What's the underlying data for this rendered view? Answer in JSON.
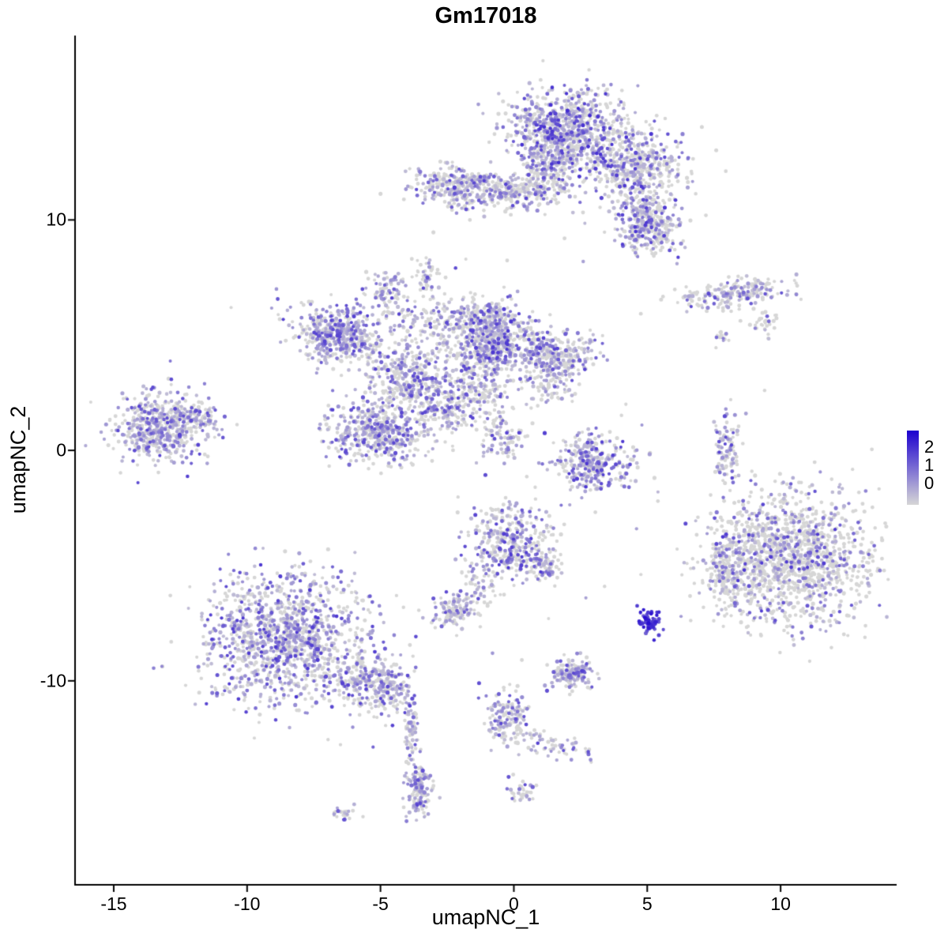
{
  "title": "Gm17018",
  "axes": {
    "x": {
      "label": "umapNC_1"
    },
    "y": {
      "label": "umapNC_2"
    }
  },
  "legend": {
    "labels": [
      "2",
      "1",
      "0"
    ]
  },
  "colors": {
    "axis": "#000000",
    "background": "#ffffff",
    "low": "#d6d6d6",
    "high": "#1c00cf"
  },
  "chart_data": {
    "type": "scatter",
    "title": "Gm17018",
    "xlabel": "umapNC_1",
    "ylabel": "umapNC_2",
    "xlim": [
      -16.45,
      14.35
    ],
    "ylim": [
      -18.85,
      18.0
    ],
    "xticks": [
      -15,
      -10,
      -5,
      0,
      5,
      10
    ],
    "yticks": [
      -10,
      0,
      10
    ],
    "grid": false,
    "legend_position": "right",
    "colorbar": {
      "ticks": [
        2,
        1,
        0
      ],
      "low_color": "#d6d6d6",
      "high_color": "#1c00cf",
      "value_min": 0,
      "value_max": 2
    },
    "point_radius_px": 2.3,
    "seed": 7,
    "value_default": {
      "vmin": 0.25,
      "vmax": 1.4
    },
    "clusters": [
      {
        "name": "top-main",
        "cx": 2.0,
        "cy": 13.8,
        "sx": 1.05,
        "sy": 0.95,
        "rot": 0,
        "n": 900,
        "frac": 0.5,
        "vmax": 1.6
      },
      {
        "name": "top-stem",
        "cx": 1.2,
        "cy": 11.9,
        "sx": 0.5,
        "sy": 0.65,
        "rot": 0,
        "n": 200,
        "frac": 0.45
      },
      {
        "name": "top-right-lobe",
        "cx": 4.6,
        "cy": 12.2,
        "sx": 0.85,
        "sy": 0.9,
        "rot": 0,
        "n": 450,
        "frac": 0.45,
        "vmax": 1.5
      },
      {
        "name": "top-right-neck",
        "cx": 4.9,
        "cy": 10.7,
        "sx": 0.35,
        "sy": 0.4,
        "rot": 0,
        "n": 80,
        "frac": 0.45
      },
      {
        "name": "top-right-lower",
        "cx": 5.1,
        "cy": 9.5,
        "sx": 0.6,
        "sy": 0.5,
        "rot": -10,
        "n": 260,
        "frac": 0.5,
        "vmax": 1.5
      },
      {
        "name": "top-left-arm",
        "cx": -1.9,
        "cy": 11.4,
        "sx": 0.95,
        "sy": 0.45,
        "rot": -8,
        "n": 350,
        "frac": 0.45
      },
      {
        "name": "top-bridge",
        "cx": 0.1,
        "cy": 11.2,
        "sx": 0.5,
        "sy": 0.3,
        "rot": 0,
        "n": 100,
        "frac": 0.4
      },
      {
        "name": "small-upper-mid",
        "cx": -3.2,
        "cy": 7.6,
        "sx": 0.3,
        "sy": 0.4,
        "rot": 0,
        "n": 45,
        "frac": 0.5
      },
      {
        "name": "mid-main",
        "cx": -0.9,
        "cy": 5.0,
        "sx": 0.85,
        "sy": 0.85,
        "rot": 0,
        "n": 700,
        "frac": 0.5,
        "vmax": 1.5
      },
      {
        "name": "mid-left-bridge",
        "cx": -3.5,
        "cy": 5.7,
        "sx": 0.8,
        "sy": 0.45,
        "rot": 10,
        "n": 120,
        "frac": 0.45
      },
      {
        "name": "mid-left",
        "cx": -6.6,
        "cy": 5.1,
        "sx": 0.8,
        "sy": 0.6,
        "rot": -15,
        "n": 500,
        "frac": 0.55,
        "vmax": 1.4
      },
      {
        "name": "mid-spur-top",
        "cx": -4.8,
        "cy": 7.0,
        "sx": 0.35,
        "sy": 0.45,
        "rot": 0,
        "n": 80,
        "frac": 0.5
      },
      {
        "name": "mid-connector",
        "cx": -3.8,
        "cy": 3.1,
        "sx": 0.9,
        "sy": 0.7,
        "rot": -20,
        "n": 400,
        "frac": 0.5
      },
      {
        "name": "mid-lower-blob",
        "cx": -5.0,
        "cy": 0.8,
        "sx": 1.0,
        "sy": 0.6,
        "rot": 0,
        "n": 500,
        "frac": 0.55,
        "vmax": 1.4
      },
      {
        "name": "mid-lower-bridge",
        "cx": -2.5,
        "cy": 1.6,
        "sx": 0.5,
        "sy": 0.5,
        "rot": 0,
        "n": 100,
        "frac": 0.5
      },
      {
        "name": "mid-arm-down",
        "cx": -1.4,
        "cy": 2.9,
        "sx": 0.5,
        "sy": 0.8,
        "rot": 0,
        "n": 150,
        "frac": 0.45
      },
      {
        "name": "mid-right-lobe",
        "cx": 1.5,
        "cy": 4.1,
        "sx": 0.7,
        "sy": 0.5,
        "rot": 0,
        "n": 300,
        "frac": 0.5
      },
      {
        "name": "mid-right-spur",
        "cx": 1.4,
        "cy": 2.7,
        "sx": 0.45,
        "sy": 0.45,
        "rot": 0,
        "n": 70,
        "frac": 0.45
      },
      {
        "name": "mid-streak",
        "cx": -0.7,
        "cy": 1.3,
        "sx": 0.25,
        "sy": 0.8,
        "rot": -15,
        "n": 70,
        "frac": 0.4
      },
      {
        "name": "mid-streak-2",
        "cx": 0.0,
        "cy": 0.3,
        "sx": 0.3,
        "sy": 0.5,
        "rot": -30,
        "n": 45,
        "frac": 0.35
      },
      {
        "name": "left-cluster",
        "cx": -13.3,
        "cy": 1.0,
        "sx": 0.9,
        "sy": 0.7,
        "rot": 0,
        "n": 550,
        "frac": 0.55,
        "vmax": 1.4
      },
      {
        "name": "left-cluster-arm",
        "cx": -11.9,
        "cy": 1.5,
        "sx": 0.4,
        "sy": 0.25,
        "rot": 0,
        "n": 60,
        "frac": 0.5
      },
      {
        "name": "right-upper-streak",
        "cx": 8.2,
        "cy": 6.8,
        "sx": 1.1,
        "sy": 0.3,
        "rot": 8,
        "n": 200,
        "frac": 0.4
      },
      {
        "name": "right-upper-small",
        "cx": 9.3,
        "cy": 5.5,
        "sx": 0.3,
        "sy": 0.25,
        "rot": 0,
        "n": 30,
        "frac": 0.4
      },
      {
        "name": "right-upper-dot",
        "cx": 7.8,
        "cy": 4.9,
        "sx": 0.15,
        "sy": 0.15,
        "rot": 0,
        "n": 15,
        "frac": 0.4
      },
      {
        "name": "mid-right-cluster",
        "cx": 2.9,
        "cy": -0.6,
        "sx": 0.8,
        "sy": 0.6,
        "rot": 0,
        "n": 320,
        "frac": 0.55,
        "vmax": 1.5
      },
      {
        "name": "right-vertical-strip",
        "cx": 8.0,
        "cy": 0.1,
        "sx": 0.22,
        "sy": 0.75,
        "rot": 0,
        "n": 110,
        "frac": 0.45
      },
      {
        "name": "right-main",
        "cx": 10.3,
        "cy": -4.7,
        "sx": 1.5,
        "sy": 1.4,
        "rot": 0,
        "n": 1400,
        "frac": 0.3,
        "vmax": 1.5
      },
      {
        "name": "right-main-spur",
        "cx": 7.9,
        "cy": -5.2,
        "sx": 0.3,
        "sy": 0.8,
        "rot": 0,
        "n": 130,
        "frac": 0.35
      },
      {
        "name": "center-lower",
        "cx": -0.2,
        "cy": -4.0,
        "sx": 0.75,
        "sy": 0.85,
        "rot": 0,
        "n": 380,
        "frac": 0.5,
        "vmax": 1.5
      },
      {
        "name": "center-lower-spur",
        "cx": 1.2,
        "cy": -5.0,
        "sx": 0.3,
        "sy": 0.3,
        "rot": 0,
        "n": 60,
        "frac": 0.45
      },
      {
        "name": "center-connector",
        "cx": -1.4,
        "cy": -5.8,
        "sx": 0.3,
        "sy": 0.5,
        "rot": 30,
        "n": 50,
        "frac": 0.45
      },
      {
        "name": "small-center",
        "cx": -2.2,
        "cy": -7.0,
        "sx": 0.45,
        "sy": 0.35,
        "rot": 0,
        "n": 140,
        "frac": 0.5
      },
      {
        "name": "bottomleft-main",
        "cx": -8.6,
        "cy": -8.2,
        "sx": 1.5,
        "sy": 1.4,
        "rot": 0,
        "n": 1250,
        "frac": 0.55,
        "vmax": 1.5
      },
      {
        "name": "bottomleft-ext",
        "cx": -5.5,
        "cy": -10.0,
        "sx": 0.7,
        "sy": 0.6,
        "rot": -20,
        "n": 220,
        "frac": 0.5
      },
      {
        "name": "bottomleft-tail-blob",
        "cx": -4.6,
        "cy": -10.5,
        "sx": 0.4,
        "sy": 0.5,
        "rot": 0,
        "n": 100,
        "frac": 0.5
      },
      {
        "name": "bottomleft-tail",
        "cx": -3.85,
        "cy": -12.5,
        "sx": 0.12,
        "sy": 0.9,
        "rot": 0,
        "n": 70,
        "frac": 0.5
      },
      {
        "name": "bottom-blob",
        "cx": -3.55,
        "cy": -14.8,
        "sx": 0.25,
        "sy": 0.6,
        "rot": 0,
        "n": 140,
        "frac": 0.55
      },
      {
        "name": "bottom-tiny",
        "cx": -6.4,
        "cy": -15.8,
        "sx": 0.3,
        "sy": 0.15,
        "rot": 0,
        "n": 25,
        "frac": 0.4
      },
      {
        "name": "dark-blue-cluster",
        "cx": 5.1,
        "cy": -7.4,
        "sx": 0.22,
        "sy": 0.28,
        "rot": 0,
        "n": 70,
        "frac": 1.0,
        "vmin": 1.1,
        "vmax": 2.0
      },
      {
        "name": "small-bottom-mid",
        "cx": 2.2,
        "cy": -9.7,
        "sx": 0.4,
        "sy": 0.35,
        "rot": 0,
        "n": 150,
        "frac": 0.55,
        "vmax": 1.4
      },
      {
        "name": "bottom-arm",
        "cx": -0.2,
        "cy": -11.6,
        "sx": 0.45,
        "sy": 0.6,
        "rot": 0,
        "n": 150,
        "frac": 0.5
      },
      {
        "name": "bottom-streak",
        "cx": 1.5,
        "cy": -12.8,
        "sx": 0.8,
        "sy": 0.25,
        "rot": -12,
        "n": 60,
        "frac": 0.45
      },
      {
        "name": "bottom-tiny-2",
        "cx": 0.3,
        "cy": -14.8,
        "sx": 0.3,
        "sy": 0.3,
        "rot": 0,
        "n": 35,
        "frac": 0.5
      }
    ],
    "stray_points": [
      [
        -10.6,
        6.2,
        0
      ],
      [
        -8.9,
        7.0,
        0.6
      ],
      [
        -1.8,
        8.3,
        0
      ],
      [
        1.9,
        9.2,
        0
      ],
      [
        2.6,
        8.2,
        0.5
      ],
      [
        5.9,
        8.8,
        0
      ],
      [
        6.3,
        10.5,
        0.6
      ],
      [
        7.2,
        10.2,
        0
      ],
      [
        9.4,
        2.6,
        0
      ],
      [
        8.7,
        1.6,
        0.5
      ],
      [
        4.2,
        2.0,
        0
      ],
      [
        4.8,
        1.1,
        0.6
      ],
      [
        3.6,
        0.8,
        0
      ],
      [
        5.4,
        -2.2,
        0
      ],
      [
        4.6,
        -3.4,
        0.5
      ],
      [
        6.3,
        -5.4,
        0
      ],
      [
        6.9,
        -2.9,
        0
      ],
      [
        0.8,
        -1.6,
        0
      ],
      [
        0.1,
        -2.3,
        0.5
      ],
      [
        1.3,
        -7.3,
        0
      ],
      [
        2.7,
        -6.4,
        0.5
      ],
      [
        3.4,
        -5.9,
        0
      ],
      [
        -0.8,
        -8.8,
        0.6
      ],
      [
        0.3,
        -9.1,
        0
      ],
      [
        -4.4,
        -6.3,
        0
      ],
      [
        -5.0,
        -7.1,
        0.6
      ]
    ]
  }
}
